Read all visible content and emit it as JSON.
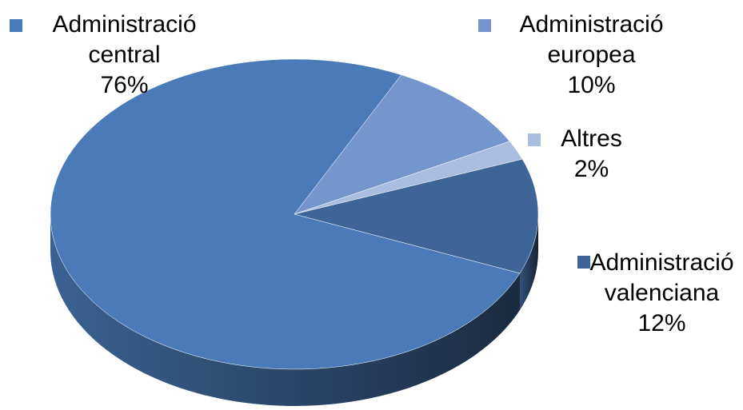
{
  "chart_data": {
    "type": "pie",
    "categories": [
      "Administració europea",
      "Altres",
      "Administració valenciana",
      "Administració central"
    ],
    "values": [
      10,
      2,
      12,
      76
    ],
    "value_labels": [
      "10%",
      "2%",
      "12%",
      "76%"
    ],
    "colors": [
      "#7496cc",
      "#a9bde0",
      "#3e6598",
      "#4a7ab8"
    ]
  }
}
